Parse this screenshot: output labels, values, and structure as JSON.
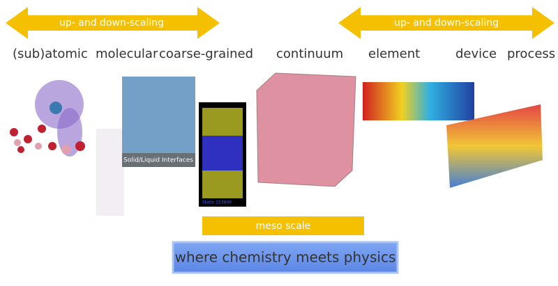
{
  "arrows": [
    {
      "label": "up- and down-scaling"
    },
    {
      "label": "up- and down-scaling"
    }
  ],
  "scales": [
    "(sub)atomic",
    "molecular",
    "coarse-grained",
    "continuum",
    "element",
    "device",
    "process"
  ],
  "image_captions": [
    "Solid/Liquid Interfaces",
    "Static 153600"
  ],
  "meso_label": "meso scale",
  "tagline": "where chemistry meets physics"
}
